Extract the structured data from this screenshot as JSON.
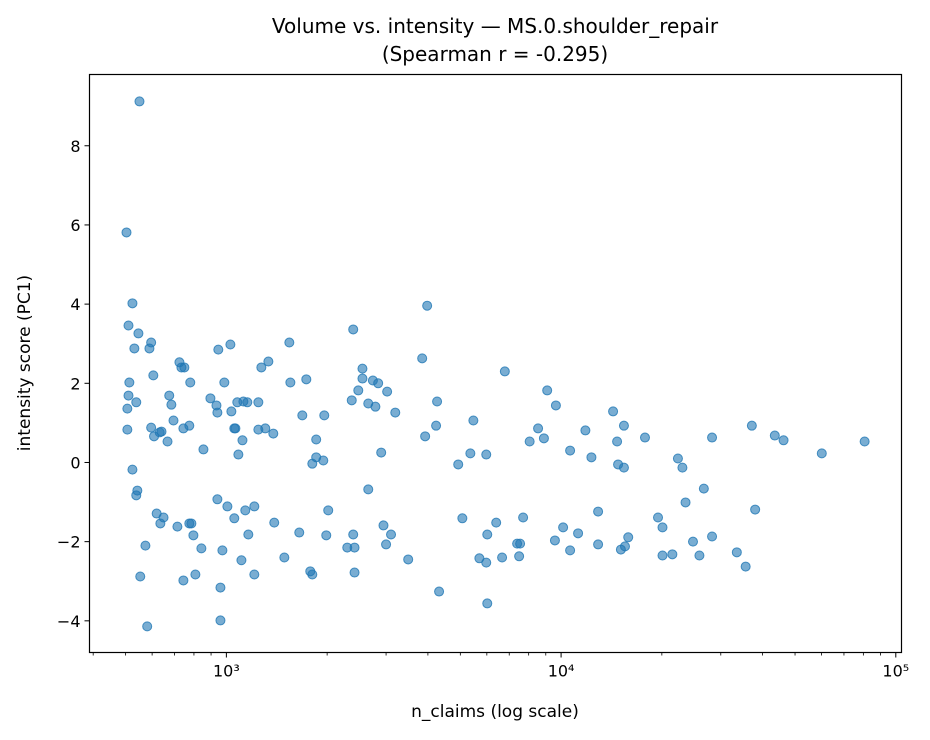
{
  "chart_data": {
    "type": "scatter",
    "title": "Volume vs. intensity — MS.0.shoulder_repair",
    "subtitle": "(Spearman r = -0.295)",
    "xlabel": "n_claims (log scale)",
    "ylabel": "intensity score (PC1)",
    "xscale": "log",
    "xlim": [
      390,
      104000
    ],
    "ylim": [
      -4.8,
      9.8
    ],
    "xticks": [
      1000,
      10000,
      100000
    ],
    "xtick_labels": [
      "10³",
      "10⁴",
      "10⁵"
    ],
    "yticks": [
      -4,
      -2,
      0,
      2,
      4,
      6,
      8
    ],
    "ytick_labels": [
      "−4",
      "−2",
      "0",
      "2",
      "4",
      "6",
      "8"
    ],
    "grid": false,
    "marker_color": "#1f77b4",
    "marker_alpha": 0.6,
    "points": [
      [
        550,
        9.12
      ],
      [
        503,
        5.81
      ],
      [
        524,
        4.02
      ],
      [
        510,
        3.46
      ],
      [
        546,
        3.26
      ],
      [
        531,
        2.88
      ],
      [
        589,
        2.88
      ],
      [
        596,
        3.03
      ],
      [
        605,
        2.2
      ],
      [
        513,
        2.02
      ],
      [
        510,
        1.69
      ],
      [
        538,
        1.52
      ],
      [
        506,
        1.36
      ],
      [
        506,
        0.83
      ],
      [
        524,
        -0.18
      ],
      [
        542,
        -0.71
      ],
      [
        538,
        -0.83
      ],
      [
        553,
        -2.88
      ],
      [
        573,
        -2.1
      ],
      [
        580,
        -4.14
      ],
      [
        596,
        0.88
      ],
      [
        608,
        0.66
      ],
      [
        632,
        0.76
      ],
      [
        640,
        0.78
      ],
      [
        667,
        0.53
      ],
      [
        675,
        1.69
      ],
      [
        685,
        1.46
      ],
      [
        695,
        1.06
      ],
      [
        724,
        2.53
      ],
      [
        734,
        2.4
      ],
      [
        749,
        2.4
      ],
      [
        744,
        0.86
      ],
      [
        775,
        0.93
      ],
      [
        780,
        2.02
      ],
      [
        619,
        -1.29
      ],
      [
        635,
        -1.54
      ],
      [
        649,
        -1.39
      ],
      [
        714,
        -1.62
      ],
      [
        775,
        -1.54
      ],
      [
        786,
        -1.54
      ],
      [
        797,
        -1.84
      ],
      [
        744,
        -2.98
      ],
      [
        808,
        -2.83
      ],
      [
        842,
        -2.17
      ],
      [
        854,
        0.33
      ],
      [
        896,
        1.62
      ],
      [
        934,
        1.44
      ],
      [
        940,
        1.26
      ],
      [
        946,
        2.85
      ],
      [
        986,
        2.02
      ],
      [
        1028,
        2.98
      ],
      [
        1035,
        1.29
      ],
      [
        1056,
        0.86
      ],
      [
        1064,
        0.86
      ],
      [
        1078,
        1.52
      ],
      [
        1124,
        1.54
      ],
      [
        1155,
        1.52
      ],
      [
        1117,
        0.56
      ],
      [
        1086,
        0.2
      ],
      [
        1246,
        1.52
      ],
      [
        1246,
        0.83
      ],
      [
        1307,
        0.86
      ],
      [
        1272,
        2.4
      ],
      [
        1335,
        2.55
      ],
      [
        1381,
        0.73
      ],
      [
        940,
        -0.93
      ],
      [
        1007,
        -1.11
      ],
      [
        1056,
        -1.41
      ],
      [
        1139,
        -1.21
      ],
      [
        1212,
        -1.11
      ],
      [
        1163,
        -1.82
      ],
      [
        973,
        -2.22
      ],
      [
        1109,
        -2.47
      ],
      [
        960,
        -3.16
      ],
      [
        960,
        -3.99
      ],
      [
        1212,
        -2.83
      ],
      [
        1390,
        -1.52
      ],
      [
        1490,
        -2.4
      ],
      [
        1542,
        3.03
      ],
      [
        1553,
        2.02
      ],
      [
        1651,
        -1.77
      ],
      [
        1686,
        1.19
      ],
      [
        1733,
        2.1
      ],
      [
        1806,
        -0.03
      ],
      [
        1855,
        0.13
      ],
      [
        1855,
        0.58
      ],
      [
        1961,
        1.19
      ],
      [
        1948,
        0.05
      ],
      [
        1781,
        -2.75
      ],
      [
        1806,
        -2.83
      ],
      [
        2015,
        -1.21
      ],
      [
        1988,
        -1.84
      ],
      [
        2297,
        -2.15
      ],
      [
        2393,
        3.36
      ],
      [
        2369,
        1.57
      ],
      [
        2478,
        1.82
      ],
      [
        2550,
        2.12
      ],
      [
        2550,
        2.37
      ],
      [
        2393,
        -1.82
      ],
      [
        2415,
        -2.15
      ],
      [
        2415,
        -2.78
      ],
      [
        2654,
        1.49
      ],
      [
        2654,
        -0.68
      ],
      [
        2740,
        2.07
      ],
      [
        2841,
        2.0
      ],
      [
        2788,
        1.41
      ],
      [
        2901,
        0.25
      ],
      [
        2947,
        -1.59
      ],
      [
        3000,
        -2.07
      ],
      [
        3022,
        1.79
      ],
      [
        3104,
        -1.82
      ],
      [
        3196,
        1.26
      ],
      [
        3493,
        -2.45
      ],
      [
        3846,
        2.63
      ],
      [
        3980,
        3.96
      ],
      [
        3925,
        0.66
      ],
      [
        4232,
        0.93
      ],
      [
        4261,
        1.54
      ],
      [
        4320,
        -3.26
      ],
      [
        4928,
        -0.05
      ],
      [
        5070,
        -1.41
      ],
      [
        5357,
        0.23
      ],
      [
        5469,
        1.06
      ],
      [
        5700,
        -2.42
      ],
      [
        5976,
        0.2
      ],
      [
        6018,
        -1.82
      ],
      [
        6018,
        -3.56
      ],
      [
        5976,
        -2.53
      ],
      [
        6399,
        -1.52
      ],
      [
        6664,
        -2.4
      ],
      [
        6791,
        2.3
      ],
      [
        7390,
        -2.05
      ],
      [
        7493,
        -2.37
      ],
      [
        7543,
        -2.05
      ],
      [
        7701,
        -1.39
      ],
      [
        8055,
        0.53
      ],
      [
        8536,
        0.86
      ],
      [
        8886,
        0.61
      ],
      [
        9088,
        1.82
      ],
      [
        9650,
        1.44
      ],
      [
        9585,
        -1.97
      ],
      [
        10140,
        -1.64
      ],
      [
        10640,
        0.3
      ],
      [
        10640,
        -2.22
      ],
      [
        11240,
        -1.79
      ],
      [
        11820,
        0.81
      ],
      [
        12320,
        0.13
      ],
      [
        12900,
        -1.24
      ],
      [
        12900,
        -2.07
      ],
      [
        14300,
        1.29
      ],
      [
        14700,
        0.53
      ],
      [
        14800,
        -0.05
      ],
      [
        15410,
        0.93
      ],
      [
        15410,
        -0.13
      ],
      [
        15090,
        -2.2
      ],
      [
        15520,
        -2.12
      ],
      [
        15870,
        -1.89
      ],
      [
        17810,
        0.63
      ],
      [
        19480,
        -1.39
      ],
      [
        20090,
        -1.64
      ],
      [
        20090,
        -2.35
      ],
      [
        21500,
        -2.32
      ],
      [
        22340,
        0.1
      ],
      [
        23040,
        -0.13
      ],
      [
        23540,
        -1.01
      ],
      [
        24780,
        -2.0
      ],
      [
        25900,
        -2.35
      ],
      [
        26700,
        -0.66
      ],
      [
        28250,
        0.63
      ],
      [
        28250,
        -1.87
      ],
      [
        33500,
        -2.27
      ],
      [
        35600,
        -2.63
      ],
      [
        37150,
        0.93
      ],
      [
        38000,
        -1.19
      ],
      [
        43500,
        0.68
      ],
      [
        46200,
        0.56
      ],
      [
        60100,
        0.23
      ],
      [
        80700,
        0.53
      ]
    ]
  }
}
